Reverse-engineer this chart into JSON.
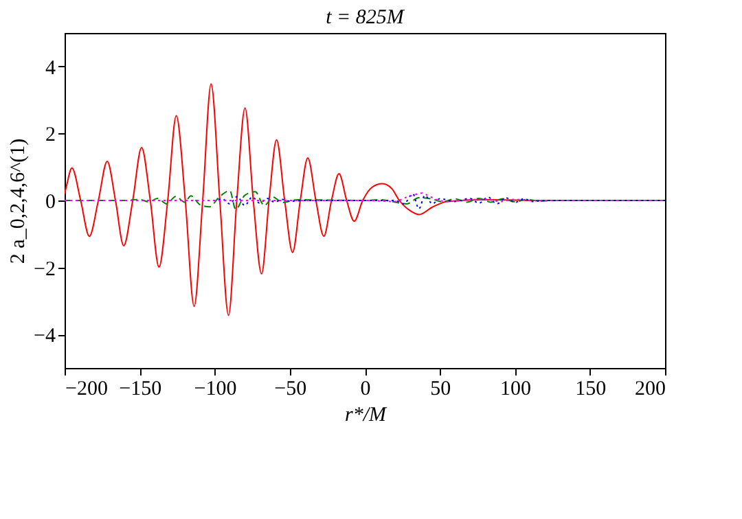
{
  "chart_data": {
    "type": "line",
    "title": "t = 825M",
    "xlabel": "r*/M",
    "ylabel": "2 a_0,2,4,6^(1)",
    "xlim": [
      -200,
      200
    ],
    "xticks": [
      -200,
      -150,
      -100,
      -50,
      0,
      50,
      100,
      150,
      200
    ],
    "ylim": [
      -5,
      5
    ],
    "yticks": [
      -4,
      -2,
      0,
      2,
      4
    ],
    "grid": false,
    "series": [
      {
        "color": "#ff0000",
        "line_style": "solid",
        "x": [
          -200,
          -198.8,
          -195.1,
          -189.3,
          -183.5,
          -177.5,
          -171.6,
          -166.1,
          -160.6,
          -154.6,
          -148.7,
          -142.9,
          -137.1,
          -131.3,
          -125.6,
          -119.6,
          -113.7,
          -108,
          -102.4,
          -96.6,
          -90.8,
          -85.3,
          -79.8,
          -74.3,
          -68.8,
          -63.8,
          -58.8,
          -53.4,
          -48.1,
          -43,
          -38,
          -32.6,
          -27.3,
          -22.2,
          -17.2,
          -12.1,
          -7.1,
          -1.4,
          5,
          11.7,
          18,
          23,
          30,
          36.2,
          45,
          55,
          80,
          120,
          200
        ],
        "values": [
          0.2,
          0.42,
          0.97,
          0,
          -1.07,
          0,
          1.17,
          0,
          -1.35,
          0,
          1.58,
          0,
          -1.99,
          0,
          2.53,
          0,
          -3.16,
          0,
          3.48,
          0,
          -3.43,
          0,
          2.76,
          0,
          -2.19,
          0,
          1.81,
          0,
          -1.55,
          0,
          1.27,
          0,
          -1.07,
          0,
          0.8,
          0,
          -0.62,
          0,
          0.4,
          0.5,
          0.35,
          0,
          -0.3,
          -0.42,
          -0.2,
          -0.03,
          0.02,
          0,
          0
        ]
      },
      {
        "color": "#008000",
        "line_style": "dashed",
        "x": [
          -200,
          -160,
          -150,
          -144,
          -138,
          -132,
          -126,
          -120,
          -115.8,
          -110,
          -103.6,
          -97,
          -89.9,
          -86,
          -80,
          -73,
          -67,
          -61,
          -55,
          -45,
          0,
          10,
          20,
          28,
          36,
          44,
          52,
          60,
          68,
          76,
          84,
          92,
          100,
          108,
          116,
          130,
          200
        ],
        "values": [
          0,
          0,
          0.03,
          -0.04,
          0.06,
          -0.1,
          0.12,
          -0.05,
          0.14,
          -0.12,
          -0.19,
          0.1,
          0.29,
          -0.27,
          0.15,
          0.26,
          -0.15,
          0.1,
          -0.06,
          0.02,
          0,
          0.02,
          -0.05,
          -0.1,
          0.08,
          0.05,
          -0.04,
          0.05,
          -0.05,
          0.06,
          -0.05,
          0.05,
          -0.04,
          0.03,
          -0.02,
          0,
          0
        ]
      },
      {
        "color": "#0000ff",
        "line_style": "dotted",
        "x": [
          -200,
          -100,
          -95,
          -90,
          -85,
          -80,
          -75,
          -70,
          -65,
          -60,
          -55,
          -50,
          -40,
          20,
          26,
          32,
          36,
          40,
          45,
          50,
          60,
          70,
          76,
          82,
          88,
          94,
          100,
          106,
          112,
          120,
          200
        ],
        "values": [
          0,
          0,
          0.05,
          -0.1,
          0.12,
          -0.15,
          0.1,
          -0.08,
          0.06,
          -0.05,
          0.03,
          -0.02,
          0,
          0,
          -0.1,
          0.2,
          -0.25,
          0.15,
          -0.1,
          0.05,
          -0.03,
          0.06,
          -0.08,
          0.1,
          -0.1,
          0.08,
          -0.06,
          0.05,
          -0.03,
          0,
          0
        ]
      },
      {
        "color": "#ff00ff",
        "line_style": "dotted",
        "x": [
          -200,
          0,
          20,
          28,
          34,
          38,
          42,
          48,
          55,
          70,
          80,
          90,
          100,
          110,
          200
        ],
        "values": [
          0,
          0,
          -0.03,
          0.1,
          0.18,
          0.22,
          0.15,
          0.02,
          -0.03,
          0.02,
          0.04,
          -0.03,
          0.03,
          0,
          0
        ]
      }
    ]
  }
}
